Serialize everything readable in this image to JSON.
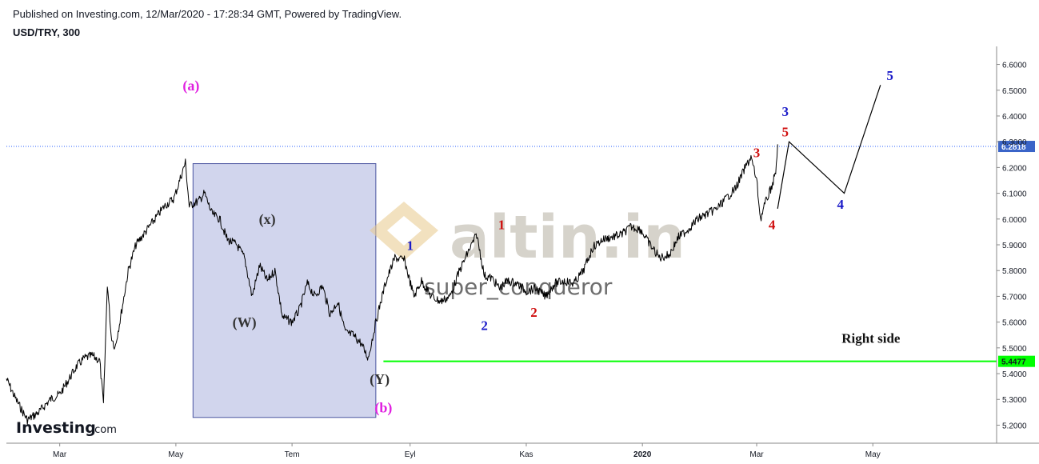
{
  "header": {
    "published": "Published on Investing.com, 12/Mar/2020 - 17:28:34 GMT, Powered by TradingView.",
    "symbol": "USD/TRY, 300"
  },
  "chart_data": {
    "type": "line",
    "yticks": [
      5.2,
      5.3,
      5.4,
      5.5,
      5.6,
      5.7,
      5.8,
      5.9,
      6.0,
      6.1,
      6.2,
      6.3,
      6.4,
      6.5,
      6.6
    ],
    "ylim": [
      5.13,
      6.67
    ],
    "xlim": [
      "2019-02-01",
      "2020-07-05"
    ],
    "xticks": [
      {
        "label": "Mar",
        "date": "2019-03-01"
      },
      {
        "label": "May",
        "date": "2019-05-01"
      },
      {
        "label": "Tem",
        "date": "2019-07-01"
      },
      {
        "label": "Eyl",
        "date": "2019-09-01"
      },
      {
        "label": "Kas",
        "date": "2019-11-01"
      },
      {
        "label": "2020",
        "date": "2020-01-01"
      },
      {
        "label": "Mar",
        "date": "2020-03-01"
      },
      {
        "label": "May",
        "date": "2020-05-01"
      }
    ],
    "series": [
      {
        "x": [
          "2019-02-01",
          "2019-02-06",
          "2019-02-12",
          "2019-02-18",
          "2019-02-24",
          "2019-03-01",
          "2019-03-06",
          "2019-03-10",
          "2019-03-14",
          "2019-03-18",
          "2019-03-22",
          "2019-03-24",
          "2019-03-26",
          "2019-03-28",
          "2019-03-30",
          "2019-04-02",
          "2019-04-06",
          "2019-04-10",
          "2019-04-15",
          "2019-04-20",
          "2019-04-25",
          "2019-04-30",
          "2019-05-03",
          "2019-05-06",
          "2019-05-08",
          "2019-05-10",
          "2019-05-13",
          "2019-05-16",
          "2019-05-20",
          "2019-05-24",
          "2019-05-28",
          "2019-06-02",
          "2019-06-06",
          "2019-06-10",
          "2019-06-14",
          "2019-06-18",
          "2019-06-22",
          "2019-06-26",
          "2019-07-01",
          "2019-07-05",
          "2019-07-09",
          "2019-07-13",
          "2019-07-17",
          "2019-07-21",
          "2019-07-25",
          "2019-07-29",
          "2019-08-02",
          "2019-08-06",
          "2019-08-10",
          "2019-08-14",
          "2019-08-19",
          "2019-08-24",
          "2019-08-29",
          "2019-09-03",
          "2019-09-07",
          "2019-09-12",
          "2019-09-17",
          "2019-09-22",
          "2019-09-27",
          "2019-10-02",
          "2019-10-06",
          "2019-10-10",
          "2019-10-14",
          "2019-10-18",
          "2019-10-22",
          "2019-10-27",
          "2019-11-01",
          "2019-11-06",
          "2019-11-11",
          "2019-11-16",
          "2019-11-21",
          "2019-11-26",
          "2019-12-01",
          "2019-12-06",
          "2019-12-11",
          "2019-12-16",
          "2019-12-21",
          "2019-12-26",
          "2019-12-31",
          "2020-01-05",
          "2020-01-10",
          "2020-01-15",
          "2020-01-20",
          "2020-01-25",
          "2020-01-30",
          "2020-02-04",
          "2020-02-09",
          "2020-02-14",
          "2020-02-19",
          "2020-02-24",
          "2020-02-27",
          "2020-03-01",
          "2020-03-03",
          "2020-03-05",
          "2020-03-07",
          "2020-03-09",
          "2020-03-11",
          "2020-03-12"
        ],
        "values": [
          5.38,
          5.3,
          5.22,
          5.25,
          5.3,
          5.32,
          5.38,
          5.43,
          5.46,
          5.47,
          5.45,
          5.28,
          5.75,
          5.55,
          5.5,
          5.62,
          5.8,
          5.9,
          5.95,
          6.0,
          6.05,
          6.08,
          6.15,
          6.22,
          6.05,
          6.06,
          6.07,
          6.1,
          6.02,
          6.0,
          5.92,
          5.9,
          5.85,
          5.7,
          5.82,
          5.76,
          5.8,
          5.62,
          5.6,
          5.65,
          5.75,
          5.7,
          5.74,
          5.63,
          5.68,
          5.56,
          5.55,
          5.52,
          5.46,
          5.6,
          5.75,
          5.85,
          5.84,
          5.7,
          5.76,
          5.7,
          5.68,
          5.7,
          5.8,
          5.88,
          5.94,
          5.78,
          5.77,
          5.73,
          5.76,
          5.75,
          5.72,
          5.73,
          5.7,
          5.75,
          5.76,
          5.75,
          5.8,
          5.89,
          5.92,
          5.93,
          5.94,
          5.97,
          5.96,
          5.9,
          5.85,
          5.86,
          5.93,
          5.96,
          6.0,
          6.02,
          6.04,
          6.08,
          6.12,
          6.2,
          6.24,
          6.15,
          6.0,
          6.05,
          6.09,
          6.13,
          6.18,
          6.29
        ]
      }
    ],
    "projection": {
      "x": [
        "2020-03-12",
        "2020-03-18",
        "2020-04-16",
        "2020-05-05"
      ],
      "values": [
        6.04,
        6.3,
        6.1,
        6.52
      ]
    },
    "horizontal_lines": [
      {
        "value": 6.2818,
        "label": "6.2818",
        "style": "dotted",
        "color": "#2962ff"
      },
      {
        "value": 5.4477,
        "label": "5.4477",
        "start": "2019-08-18",
        "color": "#00ff00"
      }
    ],
    "box": {
      "x0": "2019-05-10",
      "x1": "2019-08-14",
      "y0": 5.23,
      "y1": 6.215,
      "color": "#c5cbe8"
    },
    "wave_labels": [
      {
        "text": "(a)",
        "x": "2019-05-09",
        "y": 6.5,
        "color": "#e020e0"
      },
      {
        "text": "(x)",
        "x": "2019-06-18",
        "y": 5.98,
        "color": "#333333"
      },
      {
        "text": "(W)",
        "x": "2019-06-06",
        "y": 5.58,
        "color": "#333333"
      },
      {
        "text": "(Y)",
        "x": "2019-08-16",
        "y": 5.36,
        "color": "#333333"
      },
      {
        "text": "(b)",
        "x": "2019-08-18",
        "y": 5.25,
        "color": "#e020e0"
      },
      {
        "text": "1",
        "x": "2019-09-01",
        "y": 5.88,
        "color": "#1a1ac8"
      },
      {
        "text": "2",
        "x": "2019-10-10",
        "y": 5.57,
        "color": "#1a1ac8"
      },
      {
        "text": "1",
        "x": "2019-10-19",
        "y": 5.96,
        "color": "#d01010"
      },
      {
        "text": "2",
        "x": "2019-11-05",
        "y": 5.62,
        "color": "#d01010"
      },
      {
        "text": "3",
        "x": "2020-03-01",
        "y": 6.24,
        "color": "#d01010"
      },
      {
        "text": "4",
        "x": "2020-03-09",
        "y": 5.96,
        "color": "#d01010"
      },
      {
        "text": "3",
        "x": "2020-03-16",
        "y": 6.4,
        "color": "#1a1ac8"
      },
      {
        "text": "5",
        "x": "2020-03-16",
        "y": 6.32,
        "color": "#d01010"
      },
      {
        "text": "4",
        "x": "2020-04-14",
        "y": 6.04,
        "color": "#1a1ac8"
      },
      {
        "text": "5",
        "x": "2020-05-10",
        "y": 6.54,
        "color": "#1a1ac8"
      }
    ],
    "annotations": [
      {
        "text": "Right side",
        "x": "2020-04-30",
        "y": 5.52
      }
    ],
    "watermarks": {
      "logo": "altin.in",
      "user": "super_conqueror",
      "brand": "Investing",
      "brand_suffix": ".com"
    }
  }
}
